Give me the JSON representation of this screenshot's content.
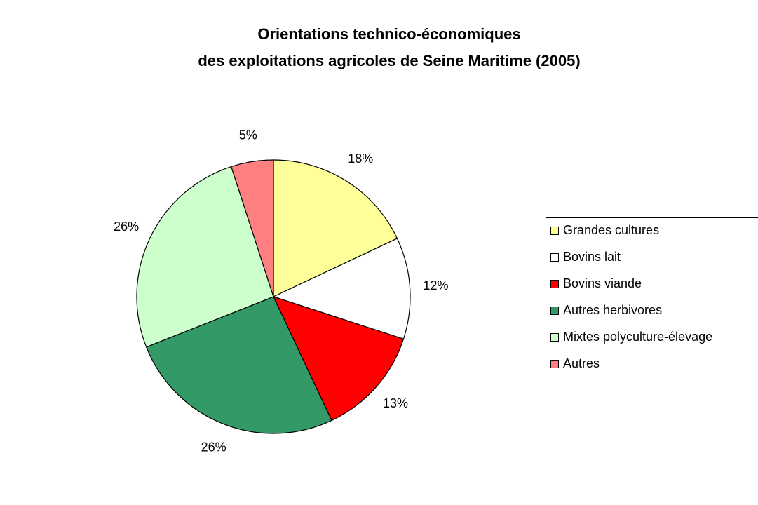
{
  "chart_data": {
    "type": "pie",
    "title": [
      "Orientations technico-économiques",
      "des exploitations agricoles de Seine Maritime (2005)"
    ],
    "categories": [
      "Grandes cultures",
      "Bovins lait",
      "Bovins viande",
      "Autres herbivores",
      "Mixtes polyculture-élevage",
      "Autres"
    ],
    "values": [
      18,
      12,
      13,
      26,
      26,
      5
    ],
    "value_labels": [
      "18%",
      "12%",
      "13%",
      "26%",
      "26%",
      "5%"
    ],
    "colors": [
      "#ffff99",
      "#ffffff",
      "#ff0000",
      "#339966",
      "#ccffcc",
      "#ff8080"
    ],
    "legend": "right"
  }
}
